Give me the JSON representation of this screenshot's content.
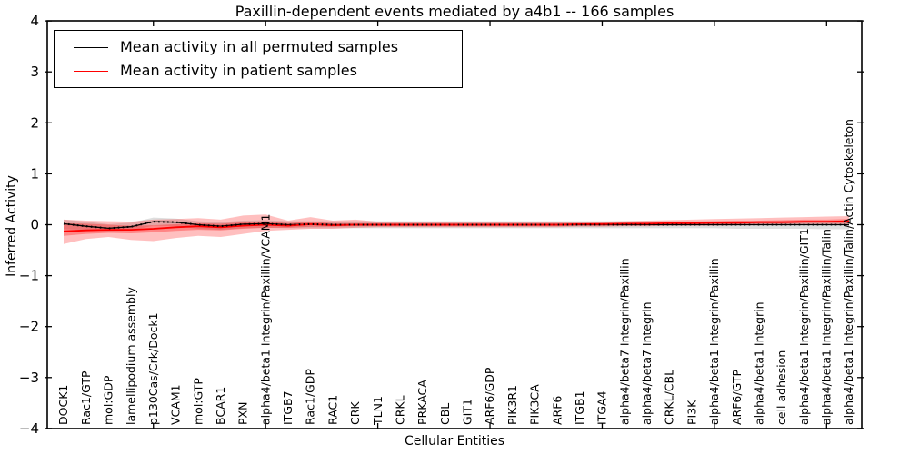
{
  "chart_data": {
    "type": "line",
    "title": "Paxillin-dependent events mediated by a4b1 -- 166 samples",
    "xlabel": "Cellular Entities",
    "ylabel": "Inferred Activity",
    "ylim": [
      -4,
      4
    ],
    "ytick_values": [
      -4,
      -3,
      -2,
      -1,
      0,
      1,
      2,
      3,
      4
    ],
    "ytick_labels": [
      "−4",
      "−3",
      "−2",
      "−1",
      "0",
      "1",
      "2",
      "3",
      "4"
    ],
    "xtick_every": 5,
    "grid": false,
    "legend_position": "upper left",
    "categories": [
      "DOCK1",
      "Rac1/GTP",
      "mol:GDP",
      "lamellipodium assembly",
      "p130Cas/Crk/Dock1",
      "VCAM1",
      "mol:GTP",
      "BCAR1",
      "PXN",
      "alpha4/beta1 Integrin/Paxillin/VCAM1",
      "ITGB7",
      "Rac1/GDP",
      "RAC1",
      "CRK",
      "TLN1",
      "CRKL",
      "PRKACA",
      "CBL",
      "GIT1",
      "ARF6/GDP",
      "PIK3R1",
      "PIK3CA",
      "ARF6",
      "ITGB1",
      "ITGA4",
      "alpha4/beta7 Integrin/Paxillin",
      "alpha4/beta7 Integrin",
      "CRKL/CBL",
      "PI3K",
      "alpha4/beta1 Integrin/Paxillin",
      "ARF6/GTP",
      "alpha4/beta1 Integrin",
      "cell adhesion",
      "alpha4/beta1 Integrin/Paxillin/GIT1",
      "alpha4/beta1 Integrin/Paxillin/Talin",
      "alpha4/beta1 Integrin/Paxillin/Talin/Actin Cytoskeleton"
    ],
    "series": [
      {
        "name": "Mean activity in all permuted samples",
        "color": "#000000",
        "values": [
          0.02,
          -0.03,
          -0.07,
          -0.04,
          0.06,
          0.05,
          0.0,
          -0.03,
          0.01,
          0.02,
          0.0,
          0.01,
          0.0,
          0.0,
          0.0,
          0.0,
          0.0,
          0.0,
          0.0,
          0.0,
          0.0,
          0.0,
          0.0,
          0.0,
          0.0,
          0.0,
          0.0,
          0.0,
          0.0,
          0.0,
          0.0,
          0.0,
          0.0,
          0.0,
          0.0,
          0.0
        ]
      },
      {
        "name": "Mean activity in patient samples",
        "color": "#ff0000",
        "values": [
          -0.13,
          -0.11,
          -0.1,
          -0.1,
          -0.08,
          -0.05,
          -0.03,
          -0.05,
          -0.02,
          0.0,
          -0.02,
          0.01,
          -0.01,
          0.0,
          0.0,
          0.0,
          0.0,
          0.0,
          0.0,
          0.0,
          0.0,
          0.0,
          0.0,
          0.01,
          0.01,
          0.02,
          0.02,
          0.03,
          0.03,
          0.04,
          0.04,
          0.05,
          0.05,
          0.06,
          0.06,
          0.07
        ]
      }
    ],
    "bands": [
      {
        "name": "permuted-range",
        "color": "rgba(0,0,0,0.13)",
        "lo": [
          -0.09,
          -0.1,
          -0.13,
          -0.11,
          -0.02,
          -0.03,
          -0.08,
          -0.1,
          -0.07,
          -0.06,
          -0.07,
          -0.07,
          -0.07,
          -0.07,
          -0.07,
          -0.07,
          -0.07,
          -0.07,
          -0.07,
          -0.07,
          -0.07,
          -0.07,
          -0.07,
          -0.07,
          -0.07,
          -0.07,
          -0.07,
          -0.07,
          -0.07,
          -0.07,
          -0.08,
          -0.08,
          -0.08,
          -0.08,
          -0.09,
          -0.09
        ],
        "hi": [
          0.1,
          0.06,
          0.01,
          0.04,
          0.14,
          0.12,
          0.07,
          0.05,
          0.08,
          0.09,
          0.07,
          0.07,
          0.07,
          0.07,
          0.07,
          0.07,
          0.07,
          0.07,
          0.07,
          0.07,
          0.07,
          0.07,
          0.07,
          0.07,
          0.07,
          0.07,
          0.07,
          0.07,
          0.07,
          0.07,
          0.07,
          0.07,
          0.07,
          0.07,
          0.07,
          0.07
        ]
      },
      {
        "name": "patient-range-outer",
        "color": "rgba(255,0,0,0.25)",
        "lo": [
          -0.38,
          -0.28,
          -0.24,
          -0.3,
          -0.32,
          -0.26,
          -0.22,
          -0.24,
          -0.18,
          -0.12,
          -0.1,
          -0.08,
          -0.08,
          -0.06,
          -0.05,
          -0.05,
          -0.05,
          -0.05,
          -0.05,
          -0.05,
          -0.05,
          -0.05,
          -0.05,
          -0.04,
          -0.04,
          -0.03,
          -0.03,
          -0.02,
          -0.02,
          -0.02,
          -0.01,
          -0.01,
          0.0,
          0.0,
          0.0,
          0.01
        ],
        "hi": [
          0.1,
          0.08,
          0.07,
          0.06,
          0.1,
          0.11,
          0.13,
          0.1,
          0.18,
          0.2,
          0.08,
          0.15,
          0.08,
          0.1,
          0.06,
          0.05,
          0.05,
          0.05,
          0.05,
          0.05,
          0.05,
          0.05,
          0.05,
          0.05,
          0.06,
          0.07,
          0.08,
          0.09,
          0.1,
          0.11,
          0.12,
          0.13,
          0.14,
          0.15,
          0.16,
          0.17
        ]
      },
      {
        "name": "patient-range-inner",
        "color": "rgba(255,0,0,0.30)",
        "lo": [
          -0.22,
          -0.18,
          -0.16,
          -0.17,
          -0.15,
          -0.12,
          -0.1,
          -0.11,
          -0.08,
          -0.06,
          -0.06,
          -0.04,
          -0.04,
          -0.03,
          -0.03,
          -0.03,
          -0.03,
          -0.03,
          -0.03,
          -0.03,
          -0.03,
          -0.03,
          -0.03,
          -0.02,
          -0.02,
          -0.01,
          -0.01,
          0.0,
          0.0,
          0.01,
          0.01,
          0.02,
          0.02,
          0.03,
          0.03,
          0.03
        ],
        "hi": [
          0.03,
          0.02,
          0.0,
          -0.02,
          -0.01,
          0.01,
          0.03,
          0.02,
          0.05,
          0.07,
          0.03,
          0.06,
          0.03,
          0.03,
          0.03,
          0.03,
          0.03,
          0.03,
          0.03,
          0.03,
          0.03,
          0.03,
          0.03,
          0.03,
          0.04,
          0.04,
          0.05,
          0.06,
          0.06,
          0.07,
          0.08,
          0.08,
          0.09,
          0.1,
          0.1,
          0.11
        ]
      }
    ]
  }
}
